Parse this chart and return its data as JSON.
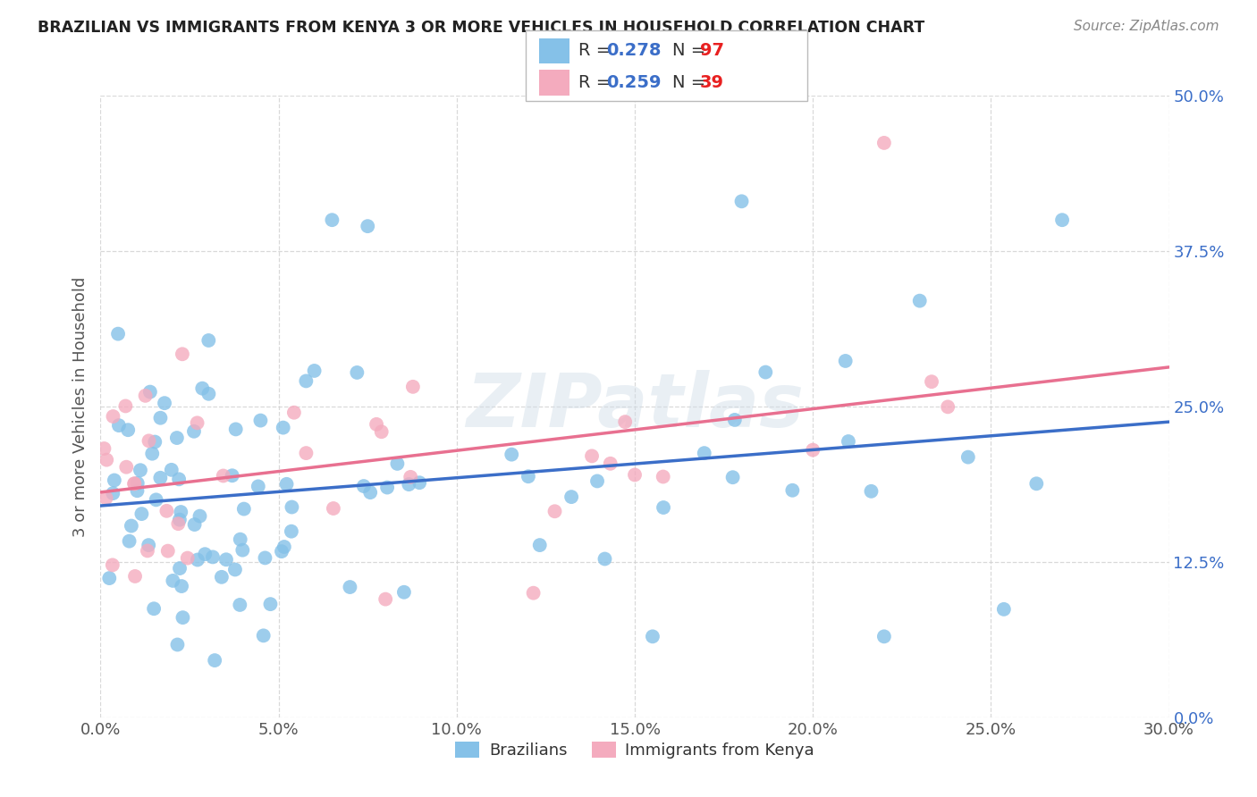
{
  "title": "BRAZILIAN VS IMMIGRANTS FROM KENYA 3 OR MORE VEHICLES IN HOUSEHOLD CORRELATION CHART",
  "source": "Source: ZipAtlas.com",
  "ylabel": "3 or more Vehicles in Household",
  "blue_color": "#85C1E8",
  "pink_color": "#F4ABBE",
  "blue_line_color": "#3B6EC8",
  "pink_line_color": "#E87090",
  "text_blue": "#3B6EC8",
  "text_red": "#E82020",
  "text_dark": "#333333",
  "watermark": "ZIPatlas",
  "xlim": [
    0.0,
    0.3
  ],
  "ylim": [
    0.0,
    0.5
  ],
  "x_ticks": [
    0.0,
    0.05,
    0.1,
    0.15,
    0.2,
    0.25,
    0.3
  ],
  "y_ticks": [
    0.0,
    0.125,
    0.25,
    0.375,
    0.5
  ],
  "legend1_R": "R = 0.278",
  "legend1_N": "N = 97",
  "legend2_R": "R = 0.259",
  "legend2_N": "N = 39",
  "bottom_legend": [
    "Brazilians",
    "Immigrants from Kenya"
  ]
}
